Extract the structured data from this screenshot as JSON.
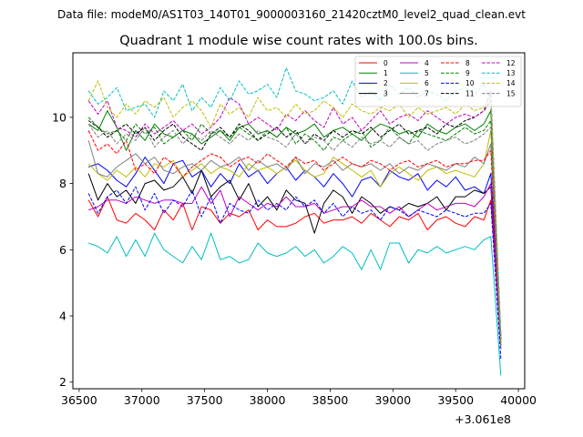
{
  "suptitle": "Data file: modeM0/AS1T03_140T01_9000003160_21420cztM0_level2_quad_clean.evt",
  "chart_data": {
    "type": "line",
    "title": "Quadrant 1 module wise count rates with 100.0s bins.",
    "xlabel": "",
    "ylabel": "",
    "x_offset_label": "+3.061e8",
    "xlim": [
      36450,
      40050
    ],
    "ylim": [
      1.8,
      11.95
    ],
    "x_ticks": [
      36500,
      37000,
      37500,
      38000,
      38500,
      39000,
      39500,
      40000
    ],
    "x_tick_labels": [
      "36500",
      "37000",
      "37500",
      "38000",
      "38500",
      "39000",
      "39500",
      "40000"
    ],
    "y_ticks": [
      2,
      4,
      6,
      8,
      10
    ],
    "y_tick_labels": [
      "2",
      "4",
      "6",
      "8",
      "10"
    ],
    "x": [
      36575,
      36650,
      36725,
      36800,
      36875,
      36950,
      37025,
      37100,
      37175,
      37250,
      37325,
      37400,
      37475,
      37550,
      37625,
      37700,
      37775,
      37850,
      37925,
      38000,
      38075,
      38150,
      38225,
      38300,
      38375,
      38450,
      38525,
      38600,
      38675,
      38750,
      38825,
      38900,
      38975,
      39050,
      39125,
      39200,
      39275,
      39350,
      39425,
      39500,
      39575,
      39650,
      39725,
      39780,
      39860
    ],
    "legend_position": "upper-right",
    "legend_columns": 4,
    "series": [
      {
        "name": "0",
        "color": "#ff0000",
        "dash": "solid",
        "values": [
          7.5,
          7.0,
          7.6,
          6.9,
          6.8,
          7.1,
          6.9,
          6.6,
          7.2,
          6.9,
          7.4,
          6.6,
          7.3,
          7.2,
          6.8,
          7.1,
          7.0,
          7.2,
          6.6,
          6.9,
          6.7,
          6.7,
          6.8,
          7.0,
          7.1,
          6.8,
          6.9,
          6.9,
          7.0,
          6.8,
          7.1,
          6.9,
          6.7,
          7.0,
          6.9,
          7.1,
          6.6,
          6.9,
          7.0,
          6.8,
          6.7,
          7.0,
          6.9,
          7.5,
          3.3
        ]
      },
      {
        "name": "1",
        "color": "#008000",
        "dash": "solid",
        "values": [
          9.8,
          9.6,
          10.2,
          9.7,
          9.0,
          9.6,
          9.3,
          9.8,
          9.5,
          9.4,
          9.6,
          9.5,
          9.2,
          9.4,
          9.6,
          9.3,
          9.7,
          9.8,
          9.5,
          9.6,
          9.4,
          9.7,
          9.5,
          9.6,
          9.8,
          9.4,
          9.6,
          9.7,
          9.5,
          9.3,
          9.6,
          9.8,
          9.7,
          9.5,
          9.6,
          9.4,
          9.8,
          9.6,
          9.5,
          9.7,
          9.8,
          9.6,
          9.8,
          10.2,
          3.2
        ]
      },
      {
        "name": "2",
        "color": "#0000ff",
        "dash": "solid",
        "values": [
          8.5,
          8.6,
          8.4,
          8.1,
          7.9,
          8.3,
          8.8,
          8.4,
          8.0,
          8.6,
          8.7,
          8.2,
          8.4,
          7.9,
          8.3,
          8.0,
          8.6,
          8.2,
          8.4,
          8.0,
          8.3,
          8.5,
          8.1,
          8.4,
          8.2,
          7.9,
          8.3,
          8.0,
          7.6,
          8.1,
          8.2,
          7.9,
          8.4,
          8.2,
          8.1,
          8.3,
          7.8,
          8.1,
          7.9,
          8.2,
          7.8,
          7.9,
          7.7,
          8.3,
          3.4
        ]
      },
      {
        "name": "3",
        "color": "#000000",
        "dash": "solid",
        "values": [
          8.3,
          7.5,
          8.0,
          7.6,
          7.8,
          7.4,
          8.0,
          8.1,
          7.8,
          7.9,
          8.2,
          7.7,
          8.4,
          7.6,
          7.9,
          8.1,
          7.5,
          8.0,
          7.3,
          7.6,
          7.2,
          7.8,
          7.5,
          7.4,
          6.5,
          7.4,
          7.8,
          7.6,
          7.1,
          7.6,
          7.4,
          7.1,
          7.3,
          7.2,
          7.4,
          7.3,
          7.4,
          7.6,
          7.2,
          7.6,
          7.6,
          7.8,
          7.7,
          7.9,
          3.1
        ]
      },
      {
        "name": "4",
        "color": "#bf00bf",
        "dash": "solid",
        "values": [
          7.2,
          7.3,
          7.5,
          7.5,
          7.4,
          7.6,
          7.5,
          7.4,
          7.5,
          7.5,
          7.4,
          7.4,
          7.9,
          7.4,
          7.8,
          7.0,
          7.6,
          7.4,
          7.2,
          7.4,
          7.3,
          7.6,
          7.3,
          7.3,
          7.4,
          7.1,
          7.2,
          7.3,
          7.3,
          7.5,
          7.3,
          7.3,
          7.1,
          7.3,
          7.0,
          7.2,
          7.4,
          7.2,
          7.3,
          7.4,
          7.4,
          7.3,
          7.6,
          8.0,
          3.0
        ]
      },
      {
        "name": "5",
        "color": "#00bfbf",
        "dash": "solid",
        "values": [
          6.2,
          6.1,
          5.9,
          6.4,
          5.8,
          6.3,
          5.8,
          6.5,
          6.0,
          5.8,
          5.6,
          6.1,
          5.7,
          6.5,
          5.7,
          5.8,
          5.6,
          5.7,
          6.2,
          5.9,
          5.8,
          5.9,
          6.1,
          5.8,
          6.0,
          5.6,
          5.8,
          6.1,
          5.9,
          5.4,
          6.0,
          5.4,
          6.2,
          6.2,
          5.6,
          6.0,
          5.9,
          6.1,
          5.9,
          6.0,
          6.1,
          6.0,
          6.3,
          6.4,
          2.2
        ]
      },
      {
        "name": "6",
        "color": "#bfbf00",
        "dash": "solid",
        "values": [
          8.6,
          8.3,
          8.1,
          8.4,
          8.2,
          8.5,
          8.2,
          8.6,
          8.5,
          8.7,
          8.2,
          8.4,
          8.6,
          8.3,
          8.5,
          8.4,
          8.2,
          8.6,
          8.4,
          8.5,
          8.3,
          8.5,
          8.7,
          8.4,
          8.2,
          8.3,
          8.8,
          8.6,
          8.4,
          8.2,
          8.4,
          7.9,
          8.3,
          8.5,
          8.3,
          8.1,
          8.4,
          8.5,
          8.3,
          8.4,
          8.3,
          8.2,
          8.6,
          9.6,
          3.2
        ]
      },
      {
        "name": "7",
        "color": "#808080",
        "dash": "solid",
        "values": [
          9.3,
          8.3,
          8.2,
          8.5,
          8.7,
          8.9,
          8.6,
          8.8,
          8.4,
          8.3,
          8.5,
          8.6,
          8.4,
          8.7,
          8.5,
          8.6,
          8.8,
          8.4,
          8.7,
          8.5,
          8.6,
          8.4,
          8.8,
          8.3,
          8.6,
          8.5,
          8.7,
          8.4,
          8.6,
          8.5,
          8.6,
          8.4,
          8.6,
          8.3,
          8.5,
          8.4,
          8.6,
          8.5,
          8.4,
          8.6,
          8.5,
          8.8,
          8.6,
          9.2,
          3.0
        ]
      },
      {
        "name": "8",
        "color": "#ff0000",
        "dash": "dashed",
        "values": [
          9.6,
          9.0,
          9.2,
          8.9,
          9.3,
          8.4,
          8.6,
          8.3,
          8.8,
          8.6,
          8.2,
          8.5,
          8.7,
          8.9,
          8.8,
          8.5,
          8.7,
          8.8,
          8.6,
          8.9,
          8.7,
          8.5,
          8.8,
          8.6,
          8.7,
          8.4,
          8.6,
          8.8,
          8.6,
          8.5,
          8.7,
          8.6,
          8.4,
          8.6,
          8.7,
          8.5,
          8.6,
          8.7,
          8.5,
          8.6,
          8.6,
          8.7,
          8.7,
          9.0,
          3.1
        ]
      },
      {
        "name": "9",
        "color": "#008000",
        "dash": "dashed",
        "values": [
          10.0,
          9.7,
          9.5,
          9.6,
          9.3,
          9.8,
          9.5,
          9.7,
          9.2,
          9.4,
          9.6,
          9.3,
          9.8,
          9.5,
          9.6,
          9.4,
          9.7,
          9.5,
          9.3,
          9.6,
          9.4,
          9.7,
          9.2,
          9.5,
          9.3,
          9.0,
          9.4,
          9.3,
          9.5,
          9.6,
          9.1,
          9.3,
          9.7,
          9.4,
          9.2,
          9.6,
          9.5,
          9.4,
          9.3,
          9.5,
          9.7,
          9.5,
          9.6,
          9.9,
          3.2
        ]
      },
      {
        "name": "10",
        "color": "#0000ff",
        "dash": "dashed",
        "values": [
          7.7,
          7.1,
          7.6,
          7.8,
          7.4,
          7.9,
          7.2,
          7.7,
          7.1,
          7.5,
          7.3,
          7.8,
          7.0,
          7.6,
          6.8,
          7.4,
          7.2,
          7.1,
          7.5,
          7.2,
          7.4,
          7.2,
          7.6,
          7.3,
          7.5,
          7.1,
          7.4,
          7.0,
          7.3,
          7.1,
          7.2,
          6.9,
          7.3,
          7.2,
          7.0,
          7.2,
          7.1,
          7.0,
          7.2,
          7.1,
          7.0,
          7.1,
          7.1,
          7.4,
          2.7
        ]
      },
      {
        "name": "11",
        "color": "#000000",
        "dash": "dashed",
        "values": [
          9.9,
          9.7,
          9.4,
          9.6,
          9.8,
          9.5,
          9.7,
          9.3,
          9.6,
          9.8,
          9.4,
          9.2,
          9.0,
          9.5,
          9.7,
          9.4,
          9.8,
          9.6,
          9.3,
          9.5,
          9.7,
          9.4,
          9.6,
          9.2,
          9.5,
          9.3,
          9.6,
          9.4,
          9.6,
          9.5,
          9.7,
          9.4,
          9.6,
          9.8,
          9.5,
          9.6,
          9.7,
          9.5,
          9.8,
          9.7,
          9.9,
          10.0,
          10.2,
          10.5,
          3.3
        ]
      },
      {
        "name": "12",
        "color": "#bf00bf",
        "dash": "dashed",
        "values": [
          10.5,
          10.1,
          10.5,
          9.7,
          9.6,
          9.4,
          9.8,
          9.5,
          9.7,
          9.9,
          9.6,
          9.8,
          9.5,
          9.7,
          10.0,
          10.6,
          10.4,
          9.8,
          10.0,
          9.8,
          9.6,
          10.1,
          9.9,
          10.2,
          9.9,
          9.7,
          10.3,
          9.8,
          10.0,
          9.6,
          9.9,
          10.2,
          9.8,
          10.0,
          10.1,
          9.9,
          10.2,
          10.0,
          9.8,
          10.0,
          10.1,
          10.0,
          10.2,
          10.8,
          3.4
        ]
      },
      {
        "name": "13",
        "color": "#00bfbf",
        "dash": "dashed",
        "values": [
          10.8,
          10.4,
          10.6,
          10.9,
          10.2,
          10.3,
          10.4,
          10.0,
          10.8,
          10.5,
          11.0,
          10.2,
          10.6,
          10.3,
          10.9,
          10.5,
          11.1,
          10.7,
          10.8,
          11.0,
          10.6,
          11.5,
          10.8,
          10.7,
          10.5,
          10.6,
          10.8,
          10.4,
          11.1,
          10.6,
          10.8,
          10.5,
          11.0,
          10.7,
          10.9,
          10.6,
          10.8,
          10.7,
          10.5,
          10.8,
          10.9,
          10.7,
          11.0,
          10.5,
          3.5
        ]
      },
      {
        "name": "14",
        "color": "#bfbf00",
        "dash": "dashed",
        "values": [
          10.5,
          11.1,
          10.3,
          10.0,
          10.4,
          10.1,
          10.5,
          10.3,
          10.6,
          10.0,
          10.3,
          10.5,
          10.2,
          9.7,
          10.4,
          10.1,
          10.3,
          10.0,
          10.6,
          10.2,
          10.3,
          10.0,
          10.4,
          10.1,
          10.2,
          10.5,
          10.3,
          10.0,
          10.4,
          10.2,
          10.1,
          10.3,
          10.2,
          10.4,
          10.0,
          10.3,
          10.1,
          10.2,
          10.3,
          10.1,
          10.4,
          10.2,
          10.3,
          10.6,
          3.2
        ]
      },
      {
        "name": "15",
        "color": "#808080",
        "dash": "dashed",
        "values": [
          9.8,
          9.4,
          9.6,
          9.2,
          9.5,
          9.3,
          9.7,
          9.1,
          9.4,
          9.6,
          9.2,
          9.5,
          9.3,
          9.6,
          9.4,
          9.2,
          9.5,
          9.3,
          9.6,
          9.4,
          9.3,
          9.1,
          9.5,
          9.2,
          9.4,
          9.3,
          9.0,
          9.3,
          9.1,
          9.4,
          9.2,
          9.3,
          9.1,
          9.4,
          9.2,
          9.3,
          9.0,
          9.2,
          9.3,
          9.4,
          9.2,
          9.3,
          9.5,
          9.7,
          3.0
        ]
      }
    ]
  }
}
